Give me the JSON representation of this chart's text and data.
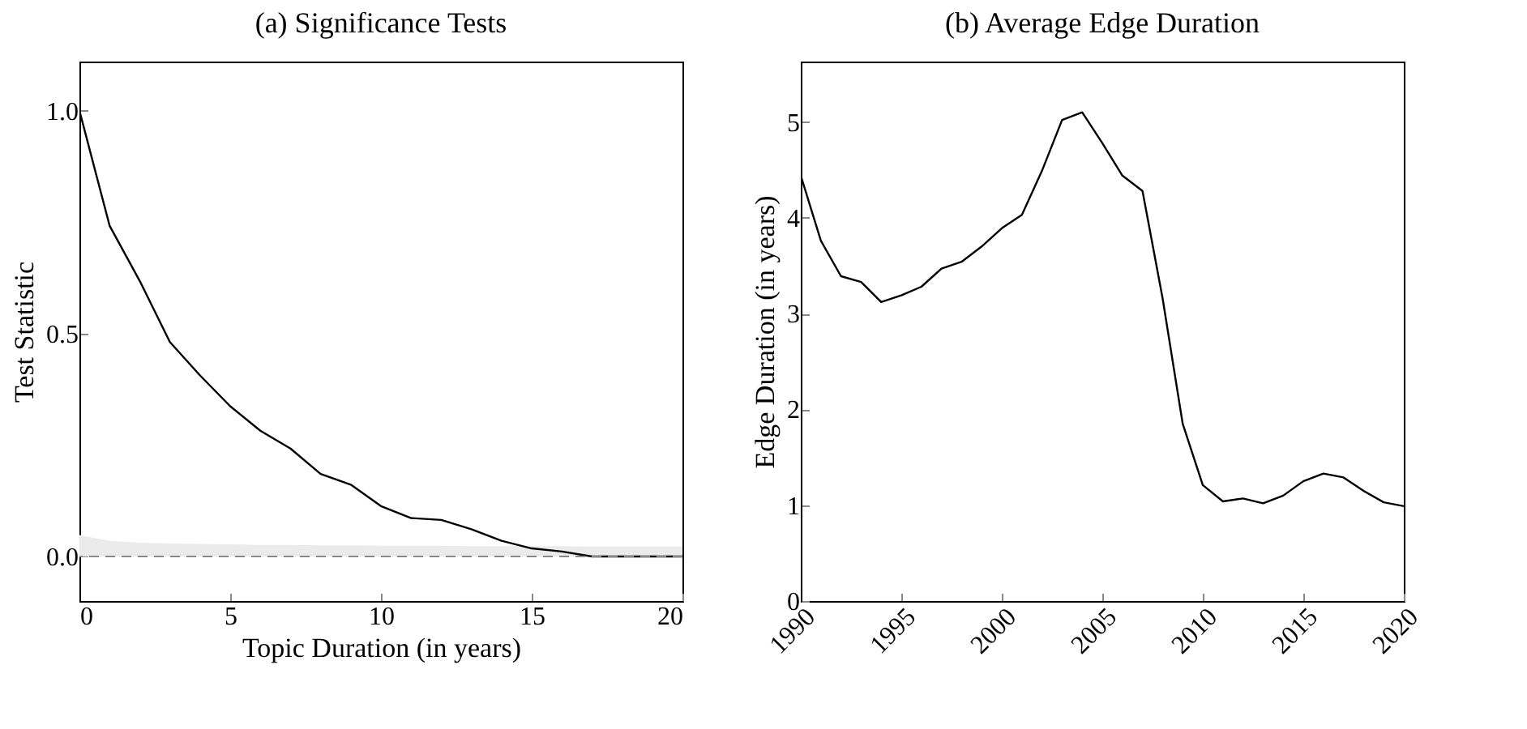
{
  "chart_data": [
    {
      "type": "line",
      "title": "(a) Significance Tests",
      "xlabel": "Topic Duration (in years)",
      "ylabel": "Test Statistic",
      "x": [
        0,
        1,
        2,
        3,
        4,
        5,
        6,
        7,
        8,
        9,
        10,
        11,
        12,
        13,
        14,
        15,
        16,
        17,
        18,
        19,
        20
      ],
      "series": [
        {
          "type": "area",
          "color": "#ebebeb",
          "values": [
            0.048,
            0.035,
            0.031,
            0.029,
            0.028,
            0.027,
            0.026,
            0.026,
            0.025,
            0.025,
            0.024,
            0.024,
            0.024,
            0.023,
            0.023,
            0.023,
            0.023,
            0.022,
            0.022,
            0.022,
            0.022
          ]
        },
        {
          "color": "#000000",
          "values": [
            1.0,
            0.742,
            0.618,
            0.481,
            0.406,
            0.337,
            0.282,
            0.242,
            0.185,
            0.161,
            0.113,
            0.086,
            0.082,
            0.061,
            0.035,
            0.018,
            0.011,
            0.0,
            0.0,
            0.0,
            0.0
          ]
        }
      ],
      "xlim": [
        0,
        20
      ],
      "ylim": [
        -0.1,
        1.11
      ],
      "xticks": [
        0,
        5,
        10,
        15,
        20
      ],
      "yticks": [
        {
          "value": 0,
          "label": "0.0"
        },
        0.5,
        {
          "value": 1,
          "label": "1.0"
        }
      ],
      "ref_lines": [
        {
          "axis": "y",
          "value": 0,
          "color": "#888888",
          "line_style": "dashed"
        }
      ]
    },
    {
      "type": "line",
      "title": "(b) Average Edge Duration",
      "ylabel": "Edge Duration (in years)",
      "x": [
        1990,
        1991,
        1992,
        1993,
        1994,
        1995,
        1996,
        1997,
        1998,
        1999,
        2000,
        2001,
        2002,
        2003,
        2004,
        2005,
        2006,
        2007,
        2008,
        2009,
        2010,
        2011,
        2012,
        2013,
        2014,
        2015,
        2016,
        2017,
        2018,
        2019,
        2020
      ],
      "series": [
        {
          "color": "#000000",
          "values": [
            4.44,
            3.76,
            3.39,
            3.33,
            3.12,
            3.19,
            3.28,
            3.47,
            3.54,
            3.7,
            3.89,
            4.03,
            4.49,
            5.02,
            5.1,
            4.78,
            4.44,
            4.28,
            3.16,
            1.85,
            1.21,
            1.04,
            1.07,
            1.02,
            1.1,
            1.25,
            1.33,
            1.29,
            1.15,
            1.03,
            0.99
          ]
        }
      ],
      "xlim": [
        1990,
        2020
      ],
      "ylim": [
        0,
        5.63
      ],
      "xticks": [
        1990,
        1995,
        2000,
        2005,
        2010,
        2015,
        2020
      ],
      "yticks": [
        0,
        1,
        2,
        3,
        4,
        5
      ]
    }
  ]
}
